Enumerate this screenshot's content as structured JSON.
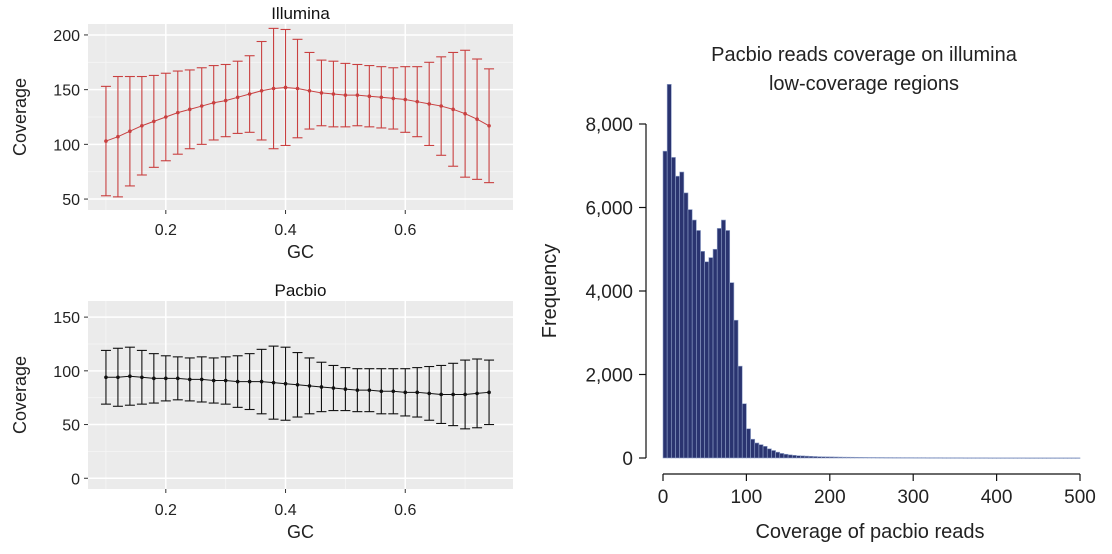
{
  "chart_data": [
    {
      "type": "line",
      "title": "Illumina",
      "xlabel": "GC",
      "ylabel": "Coverage",
      "xlim": [
        0.07,
        0.78
      ],
      "ylim": [
        40,
        210
      ],
      "xticks": [
        0.2,
        0.4,
        0.6
      ],
      "xtick_labels": [
        "0.2",
        "0.4",
        "0.6"
      ],
      "yticks": [
        50,
        100,
        150,
        200
      ],
      "ytick_labels": [
        "50",
        "100",
        "150",
        "200"
      ],
      "grid": true,
      "color": "#c94040",
      "x": [
        0.1,
        0.12,
        0.14,
        0.16,
        0.18,
        0.2,
        0.22,
        0.24,
        0.26,
        0.28,
        0.3,
        0.32,
        0.34,
        0.36,
        0.38,
        0.4,
        0.42,
        0.44,
        0.46,
        0.48,
        0.5,
        0.52,
        0.54,
        0.56,
        0.58,
        0.6,
        0.62,
        0.64,
        0.66,
        0.68,
        0.7,
        0.72,
        0.74
      ],
      "y": [
        103,
        107,
        112,
        117,
        121,
        125,
        129,
        132,
        135,
        138,
        140,
        143,
        146,
        149,
        151,
        152,
        151,
        149,
        147,
        146,
        145,
        145,
        144,
        143,
        142,
        141,
        139,
        137,
        135,
        132,
        128,
        123,
        117
      ],
      "err": [
        50,
        55,
        50,
        45,
        42,
        40,
        38,
        36,
        35,
        34,
        33,
        33,
        35,
        45,
        55,
        53,
        45,
        35,
        30,
        30,
        29,
        28,
        28,
        28,
        28,
        30,
        32,
        38,
        45,
        52,
        58,
        55,
        52
      ]
    },
    {
      "type": "line",
      "title": "Pacbio",
      "xlabel": "GC",
      "ylabel": "Coverage",
      "xlim": [
        0.07,
        0.78
      ],
      "ylim": [
        -10,
        165
      ],
      "xticks": [
        0.2,
        0.4,
        0.6
      ],
      "xtick_labels": [
        "0.2",
        "0.4",
        "0.6"
      ],
      "yticks": [
        0,
        50,
        100,
        150
      ],
      "ytick_labels": [
        "0",
        "50",
        "100",
        "150"
      ],
      "grid": true,
      "color": "#111111",
      "x": [
        0.1,
        0.12,
        0.14,
        0.16,
        0.18,
        0.2,
        0.22,
        0.24,
        0.26,
        0.28,
        0.3,
        0.32,
        0.34,
        0.36,
        0.38,
        0.4,
        0.42,
        0.44,
        0.46,
        0.48,
        0.5,
        0.52,
        0.54,
        0.56,
        0.58,
        0.6,
        0.62,
        0.64,
        0.66,
        0.68,
        0.7,
        0.72,
        0.74
      ],
      "y": [
        94,
        94,
        95,
        94,
        93,
        93,
        93,
        92,
        92,
        91,
        91,
        90,
        90,
        90,
        89,
        88,
        87,
        86,
        85,
        84,
        83,
        82,
        82,
        81,
        81,
        80,
        80,
        79,
        78,
        78,
        78,
        79,
        80
      ],
      "err": [
        25,
        27,
        27,
        25,
        23,
        21,
        20,
        20,
        21,
        21,
        22,
        24,
        26,
        30,
        34,
        34,
        30,
        26,
        23,
        21,
        20,
        20,
        20,
        21,
        21,
        22,
        23,
        25,
        27,
        29,
        32,
        32,
        30
      ]
    },
    {
      "type": "bar",
      "title": "Pacbio reads coverage on illumina low-coverage regions",
      "title_lines": [
        "Pacbio reads coverage on illumina",
        "low-coverage regions"
      ],
      "xlabel": "Coverage of pacbio reads",
      "ylabel": "Frequency",
      "xlim": [
        0,
        500
      ],
      "ylim": [
        0,
        9000
      ],
      "xticks": [
        0,
        100,
        200,
        300,
        400,
        500
      ],
      "xtick_labels": [
        "0",
        "100",
        "200",
        "300",
        "400",
        "500"
      ],
      "yticks": [
        0,
        2000,
        4000,
        6000,
        8000
      ],
      "ytick_labels": [
        "0",
        "2,000",
        "4,000",
        "6,000",
        "8,000"
      ],
      "grid": false,
      "color": "#2a3470",
      "bin_width": 5,
      "bin_start": 0,
      "values": [
        7350,
        8950,
        7200,
        6750,
        6850,
        6350,
        5950,
        5700,
        5450,
        4950,
        4700,
        4800,
        5000,
        5500,
        5700,
        5450,
        4200,
        3300,
        2200,
        1300,
        700,
        450,
        360,
        320,
        280,
        220,
        180,
        140,
        110,
        90,
        75,
        65,
        55,
        50,
        45,
        40,
        36,
        32,
        30,
        28,
        26,
        24,
        22,
        20,
        19,
        18,
        17,
        16,
        15,
        14,
        14,
        13,
        13,
        12,
        12,
        11,
        11,
        10,
        10,
        10,
        9,
        9,
        9,
        8,
        8,
        8,
        8,
        7,
        7,
        7,
        7,
        7,
        6,
        6,
        6,
        6,
        6,
        6,
        5,
        5,
        5,
        5,
        5,
        5,
        5,
        5,
        5,
        4,
        4,
        4,
        4,
        4,
        4,
        4,
        4,
        4,
        4,
        4,
        4,
        4
      ]
    }
  ]
}
